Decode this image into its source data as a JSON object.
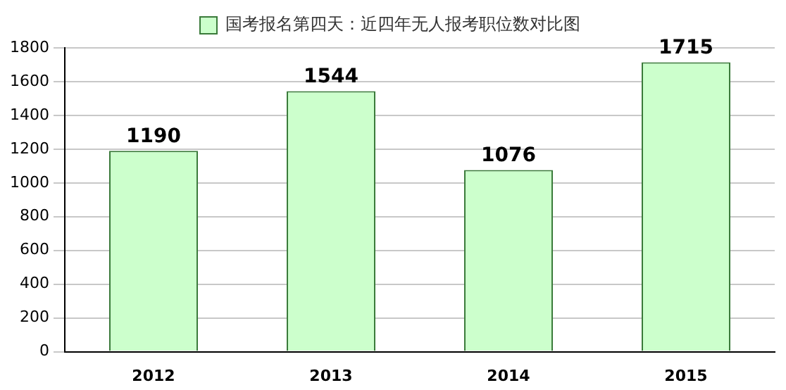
{
  "chart_data": {
    "type": "bar",
    "categories": [
      "2012",
      "2013",
      "2014",
      "2015"
    ],
    "series": [
      {
        "name": "国考报名第四天：近四年无人报考职位数对比图",
        "color": "#ccffcc",
        "values": [
          1190,
          1544,
          1076,
          1715
        ]
      }
    ],
    "ylim": [
      0,
      1800
    ],
    "yticks": [
      0,
      200,
      400,
      600,
      800,
      1000,
      1200,
      1400,
      1600,
      1800
    ],
    "grid": "y",
    "legend": "top",
    "data_labels": true
  }
}
